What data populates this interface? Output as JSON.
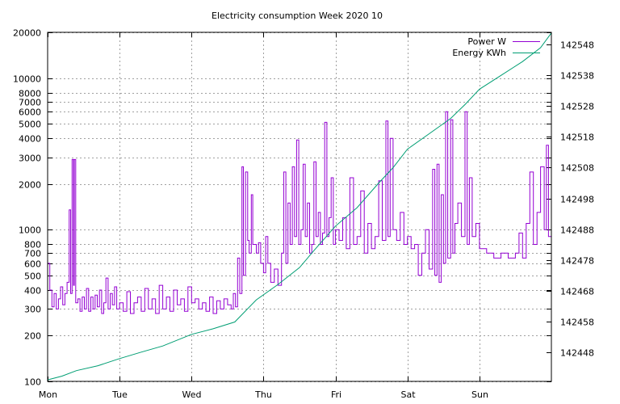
{
  "chart_data": {
    "type": "line",
    "title": "Electricity consumption Week 2020 10",
    "xlabel": "",
    "ylabel": "",
    "x_categories": [
      "Mon",
      "Tue",
      "Wed",
      "Thu",
      "Fri",
      "Sat",
      "Sun"
    ],
    "x_range_days": [
      0,
      7
    ],
    "y_scale": "log",
    "ylim": [
      100,
      20000
    ],
    "y_ticks": [
      100,
      200,
      300,
      400,
      500,
      600,
      700,
      800,
      1000,
      2000,
      3000,
      4000,
      5000,
      6000,
      7000,
      8000,
      10000,
      20000
    ],
    "y2_scale": "linear",
    "y2_ticks": [
      142448,
      142458,
      142468,
      142478,
      142488,
      142498,
      142508,
      142518,
      142528,
      142538,
      142548
    ],
    "y2lim": [
      142438.5,
      142552
    ],
    "grid": true,
    "legend_position": "top-right",
    "series": [
      {
        "name": "Power W",
        "axis": "y1",
        "color": "#9400d3",
        "points": [
          [
            0.0,
            600
          ],
          [
            0.03,
            400
          ],
          [
            0.06,
            310
          ],
          [
            0.09,
            380
          ],
          [
            0.12,
            300
          ],
          [
            0.15,
            350
          ],
          [
            0.18,
            420
          ],
          [
            0.21,
            320
          ],
          [
            0.24,
            380
          ],
          [
            0.27,
            450
          ],
          [
            0.3,
            1350
          ],
          [
            0.32,
            380
          ],
          [
            0.34,
            2900
          ],
          [
            0.36,
            430
          ],
          [
            0.37,
            2900
          ],
          [
            0.39,
            330
          ],
          [
            0.42,
            350
          ],
          [
            0.45,
            290
          ],
          [
            0.48,
            360
          ],
          [
            0.51,
            300
          ],
          [
            0.54,
            410
          ],
          [
            0.57,
            290
          ],
          [
            0.6,
            360
          ],
          [
            0.63,
            300
          ],
          [
            0.66,
            370
          ],
          [
            0.69,
            310
          ],
          [
            0.72,
            400
          ],
          [
            0.75,
            280
          ],
          [
            0.78,
            330
          ],
          [
            0.81,
            480
          ],
          [
            0.84,
            300
          ],
          [
            0.87,
            380
          ],
          [
            0.9,
            320
          ],
          [
            0.93,
            420
          ],
          [
            0.96,
            300
          ],
          [
            1.0,
            330
          ],
          [
            1.05,
            290
          ],
          [
            1.1,
            390
          ],
          [
            1.15,
            280
          ],
          [
            1.2,
            330
          ],
          [
            1.25,
            360
          ],
          [
            1.3,
            290
          ],
          [
            1.35,
            410
          ],
          [
            1.4,
            300
          ],
          [
            1.45,
            350
          ],
          [
            1.5,
            280
          ],
          [
            1.55,
            430
          ],
          [
            1.6,
            300
          ],
          [
            1.65,
            360
          ],
          [
            1.7,
            290
          ],
          [
            1.75,
            400
          ],
          [
            1.8,
            320
          ],
          [
            1.85,
            350
          ],
          [
            1.9,
            290
          ],
          [
            1.95,
            420
          ],
          [
            2.0,
            330
          ],
          [
            2.05,
            350
          ],
          [
            2.1,
            300
          ],
          [
            2.15,
            330
          ],
          [
            2.2,
            290
          ],
          [
            2.25,
            360
          ],
          [
            2.3,
            280
          ],
          [
            2.35,
            340
          ],
          [
            2.4,
            300
          ],
          [
            2.45,
            350
          ],
          [
            2.5,
            320
          ],
          [
            2.55,
            300
          ],
          [
            2.58,
            380
          ],
          [
            2.61,
            310
          ],
          [
            2.64,
            650
          ],
          [
            2.67,
            380
          ],
          [
            2.7,
            2600
          ],
          [
            2.72,
            500
          ],
          [
            2.75,
            2400
          ],
          [
            2.78,
            850
          ],
          [
            2.8,
            700
          ],
          [
            2.83,
            1700
          ],
          [
            2.85,
            800
          ],
          [
            2.9,
            700
          ],
          [
            2.93,
            820
          ],
          [
            2.96,
            600
          ],
          [
            3.0,
            520
          ],
          [
            3.03,
            900
          ],
          [
            3.06,
            600
          ],
          [
            3.1,
            450
          ],
          [
            3.15,
            550
          ],
          [
            3.2,
            430
          ],
          [
            3.25,
            700
          ],
          [
            3.28,
            2400
          ],
          [
            3.31,
            600
          ],
          [
            3.34,
            1500
          ],
          [
            3.37,
            800
          ],
          [
            3.4,
            2600
          ],
          [
            3.43,
            900
          ],
          [
            3.46,
            3900
          ],
          [
            3.49,
            800
          ],
          [
            3.52,
            1000
          ],
          [
            3.55,
            2700
          ],
          [
            3.58,
            900
          ],
          [
            3.61,
            1500
          ],
          [
            3.64,
            700
          ],
          [
            3.67,
            800
          ],
          [
            3.7,
            2800
          ],
          [
            3.73,
            900
          ],
          [
            3.76,
            1300
          ],
          [
            3.79,
            800
          ],
          [
            3.82,
            950
          ],
          [
            3.85,
            5100
          ],
          [
            3.88,
            900
          ],
          [
            3.91,
            1200
          ],
          [
            3.94,
            2200
          ],
          [
            3.97,
            800
          ],
          [
            4.0,
            1000
          ],
          [
            4.05,
            850
          ],
          [
            4.1,
            1200
          ],
          [
            4.15,
            750
          ],
          [
            4.2,
            2200
          ],
          [
            4.25,
            800
          ],
          [
            4.3,
            900
          ],
          [
            4.35,
            1800
          ],
          [
            4.4,
            700
          ],
          [
            4.45,
            1100
          ],
          [
            4.5,
            750
          ],
          [
            4.55,
            900
          ],
          [
            4.6,
            2100
          ],
          [
            4.65,
            850
          ],
          [
            4.7,
            5200
          ],
          [
            4.73,
            900
          ],
          [
            4.76,
            4000
          ],
          [
            4.8,
            1000
          ],
          [
            4.85,
            850
          ],
          [
            4.9,
            1300
          ],
          [
            4.95,
            800
          ],
          [
            5.0,
            900
          ],
          [
            5.05,
            750
          ],
          [
            5.1,
            800
          ],
          [
            5.15,
            500
          ],
          [
            5.2,
            700
          ],
          [
            5.25,
            1000
          ],
          [
            5.3,
            550
          ],
          [
            5.35,
            2500
          ],
          [
            5.38,
            500
          ],
          [
            5.41,
            2700
          ],
          [
            5.44,
            450
          ],
          [
            5.47,
            1700
          ],
          [
            5.5,
            600
          ],
          [
            5.53,
            6000
          ],
          [
            5.56,
            650
          ],
          [
            5.6,
            5300
          ],
          [
            5.63,
            700
          ],
          [
            5.66,
            1100
          ],
          [
            5.7,
            1500
          ],
          [
            5.75,
            900
          ],
          [
            5.8,
            6000
          ],
          [
            5.83,
            800
          ],
          [
            5.86,
            2200
          ],
          [
            5.9,
            900
          ],
          [
            5.95,
            1100
          ],
          [
            6.0,
            750
          ],
          [
            6.1,
            700
          ],
          [
            6.2,
            650
          ],
          [
            6.3,
            700
          ],
          [
            6.4,
            650
          ],
          [
            6.5,
            700
          ],
          [
            6.55,
            950
          ],
          [
            6.6,
            650
          ],
          [
            6.65,
            1100
          ],
          [
            6.7,
            2400
          ],
          [
            6.75,
            800
          ],
          [
            6.8,
            1300
          ],
          [
            6.85,
            2600
          ],
          [
            6.9,
            1000
          ],
          [
            6.93,
            3600
          ],
          [
            6.96,
            900
          ],
          [
            7.0,
            1300
          ]
        ]
      },
      {
        "name": "Energy KWh",
        "axis": "y2",
        "color": "#009e73",
        "points": [
          [
            0.0,
            142439.0
          ],
          [
            0.2,
            142440.2
          ],
          [
            0.4,
            142442.0
          ],
          [
            0.7,
            142443.6
          ],
          [
            1.0,
            142445.9
          ],
          [
            1.3,
            142448.0
          ],
          [
            1.6,
            142450.0
          ],
          [
            2.0,
            142453.8
          ],
          [
            2.3,
            142455.6
          ],
          [
            2.6,
            142457.8
          ],
          [
            2.9,
            142465.0
          ],
          [
            3.2,
            142470.0
          ],
          [
            3.5,
            142475.5
          ],
          [
            3.7,
            142481.0
          ],
          [
            4.0,
            142489.0
          ],
          [
            4.3,
            142495.0
          ],
          [
            4.6,
            142503.0
          ],
          [
            4.8,
            142508.0
          ],
          [
            5.0,
            142514.0
          ],
          [
            5.3,
            142519.0
          ],
          [
            5.6,
            142524.0
          ],
          [
            5.8,
            142528.5
          ],
          [
            6.0,
            142533.5
          ],
          [
            6.3,
            142538.0
          ],
          [
            6.6,
            142542.5
          ],
          [
            6.85,
            142547.0
          ],
          [
            7.0,
            142551.8
          ]
        ]
      }
    ]
  }
}
